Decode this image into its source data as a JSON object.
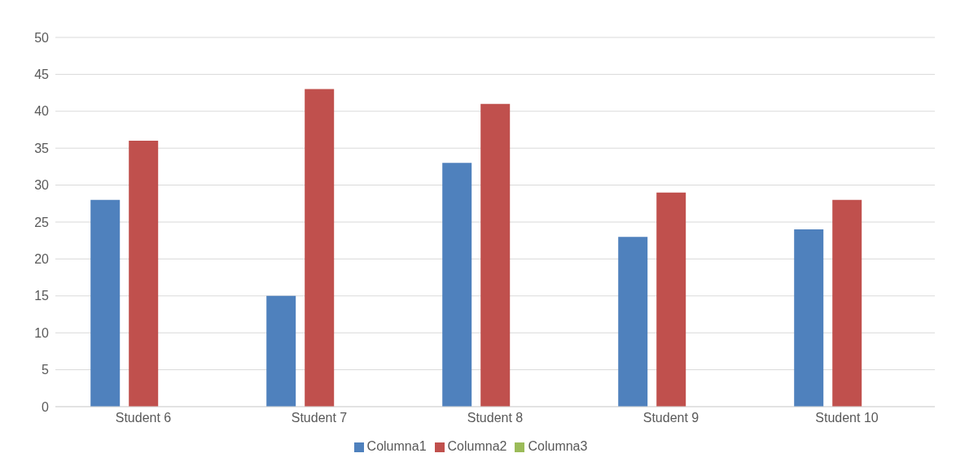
{
  "chart_data": {
    "type": "bar",
    "categories": [
      "Student 6",
      "Student 7",
      "Student 8",
      "Student 9",
      "Student 10"
    ],
    "series": [
      {
        "name": "Columna1",
        "color": "#4f81bd",
        "values": [
          28,
          15,
          33,
          23,
          24
        ]
      },
      {
        "name": "Columna2",
        "color": "#c0504d",
        "values": [
          36,
          43,
          41,
          29,
          28
        ]
      },
      {
        "name": "Columna3",
        "color": "#9bbb59",
        "values": [
          null,
          null,
          null,
          null,
          null
        ]
      }
    ],
    "ylim": [
      0,
      50
    ],
    "yticks": [
      0,
      5,
      10,
      15,
      20,
      25,
      30,
      35,
      40,
      45,
      50
    ],
    "grid": "y",
    "legend": "bottom"
  }
}
